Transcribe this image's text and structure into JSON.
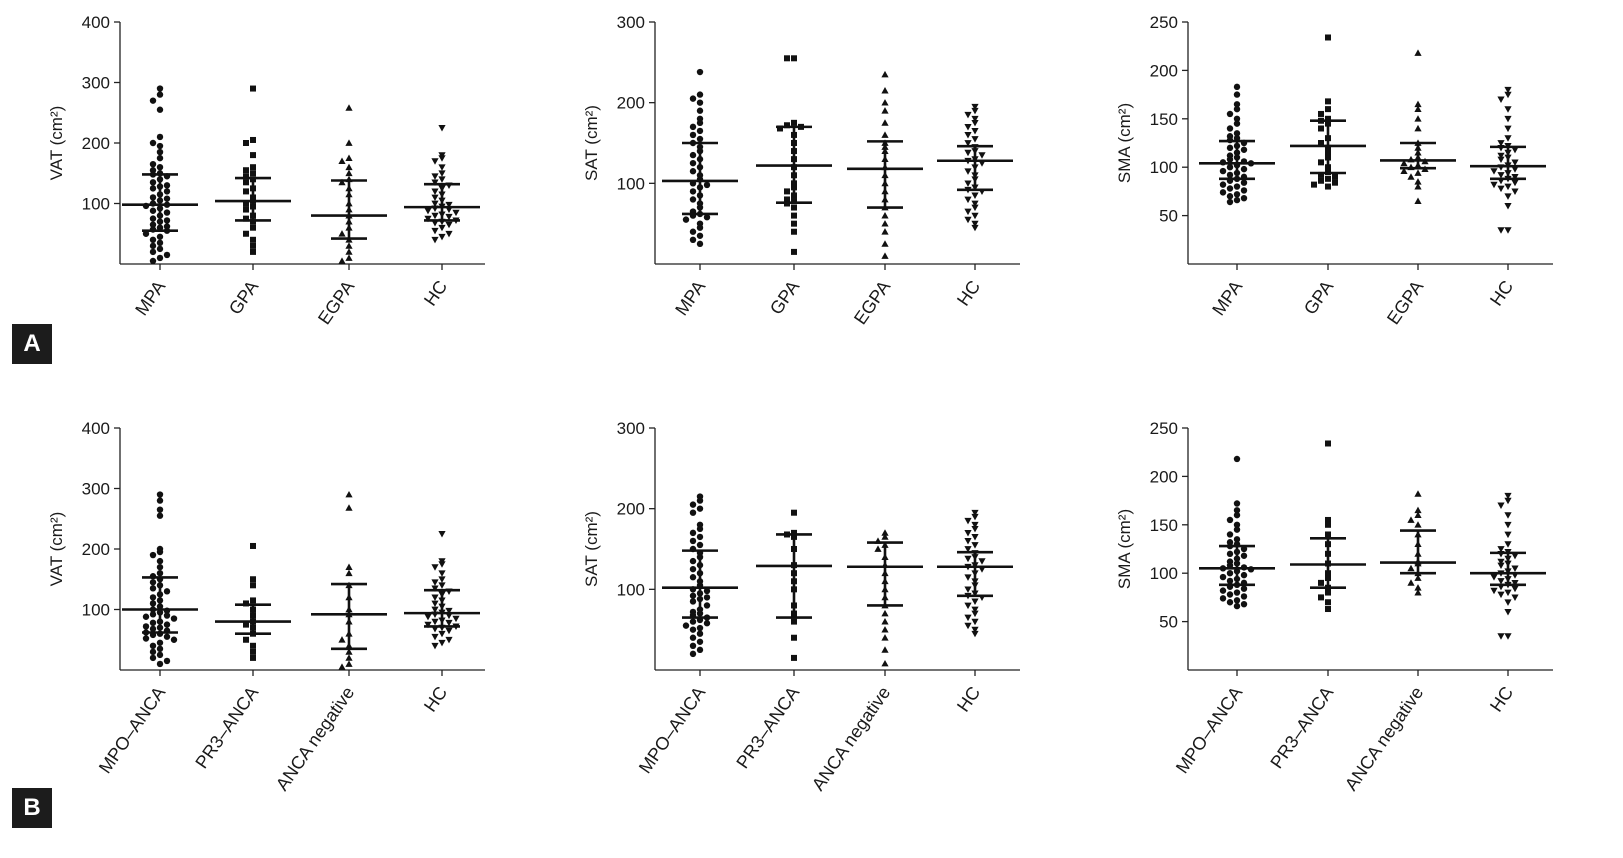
{
  "panel_labels": [
    "A",
    "B"
  ],
  "chart_data": [
    {
      "type": "scatter",
      "panel": "A",
      "ylabel": "VAT (cm²)",
      "yticks": [
        100,
        200,
        300,
        400
      ],
      "ylim": [
        0,
        400
      ],
      "categories": [
        "MPA",
        "GPA",
        "EGPA",
        "HC"
      ],
      "markers": [
        "circle",
        "square",
        "triangle",
        "triangle-down"
      ],
      "summary": [
        {
          "median": 98,
          "q1": 55,
          "q3": 148
        },
        {
          "median": 104,
          "q1": 72,
          "q3": 142
        },
        {
          "median": 80,
          "q1": 42,
          "q3": 138
        },
        {
          "median": 94,
          "q1": 72,
          "q3": 132
        }
      ],
      "points": [
        [
          290,
          280,
          270,
          255,
          210,
          200,
          195,
          185,
          175,
          165,
          160,
          155,
          150,
          148,
          145,
          140,
          135,
          130,
          128,
          125,
          120,
          115,
          110,
          108,
          105,
          100,
          98,
          96,
          92,
          88,
          85,
          80,
          75,
          72,
          70,
          65,
          62,
          60,
          57,
          55,
          50,
          45,
          40,
          35,
          30,
          25,
          20,
          15,
          10,
          5
        ],
        [
          290,
          205,
          200,
          180,
          160,
          155,
          150,
          145,
          140,
          135,
          125,
          120,
          110,
          105,
          100,
          95,
          90,
          80,
          75,
          70,
          60,
          50,
          40,
          30,
          20
        ],
        [
          258,
          200,
          175,
          170,
          160,
          150,
          140,
          135,
          125,
          115,
          100,
          90,
          80,
          70,
          60,
          50,
          40,
          30,
          20,
          10,
          5
        ],
        [
          225,
          180,
          175,
          170,
          160,
          150,
          145,
          140,
          135,
          130,
          125,
          120,
          115,
          110,
          105,
          100,
          98,
          95,
          92,
          90,
          88,
          85,
          82,
          80,
          78,
          75,
          72,
          70,
          68,
          65,
          60,
          55,
          50,
          45,
          40
        ]
      ]
    },
    {
      "type": "scatter",
      "panel": "A",
      "ylabel": "SAT (cm²)",
      "yticks": [
        100,
        200,
        300
      ],
      "ylim": [
        0,
        300
      ],
      "categories": [
        "MPA",
        "GPA",
        "EGPA",
        "HC"
      ],
      "markers": [
        "circle",
        "square",
        "triangle",
        "triangle-down"
      ],
      "summary": [
        {
          "median": 103,
          "q1": 62,
          "q3": 150
        },
        {
          "median": 122,
          "q1": 76,
          "q3": 170
        },
        {
          "median": 118,
          "q1": 70,
          "q3": 152
        },
        {
          "median": 128,
          "q1": 92,
          "q3": 146
        }
      ],
      "points": [
        [
          238,
          210,
          205,
          200,
          190,
          180,
          175,
          170,
          165,
          160,
          155,
          150,
          145,
          140,
          135,
          130,
          125,
          120,
          115,
          110,
          105,
          100,
          98,
          95,
          90,
          85,
          80,
          75,
          70,
          65,
          62,
          60,
          58,
          55,
          50,
          45,
          40,
          35,
          30,
          25
        ],
        [
          255,
          255,
          175,
          172,
          170,
          168,
          160,
          150,
          140,
          130,
          120,
          110,
          100,
          95,
          90,
          85,
          80,
          78,
          75,
          70,
          60,
          50,
          40,
          15
        ],
        [
          235,
          215,
          200,
          190,
          175,
          160,
          150,
          145,
          140,
          130,
          120,
          110,
          100,
          90,
          80,
          70,
          60,
          50,
          40,
          25,
          10
        ],
        [
          195,
          190,
          185,
          180,
          175,
          170,
          165,
          160,
          155,
          150,
          145,
          140,
          138,
          135,
          130,
          128,
          125,
          120,
          115,
          110,
          105,
          100,
          95,
          92,
          90,
          85,
          80,
          75,
          70,
          65,
          60,
          55,
          50,
          45
        ]
      ]
    },
    {
      "type": "scatter",
      "panel": "A",
      "ylabel": "SMA (cm²)",
      "yticks": [
        50,
        100,
        150,
        200,
        250
      ],
      "ylim": [
        0,
        250
      ],
      "categories": [
        "MPA",
        "GPA",
        "EGPA",
        "HC"
      ],
      "markers": [
        "circle",
        "square",
        "triangle",
        "triangle-down"
      ],
      "summary": [
        {
          "median": 104,
          "q1": 88,
          "q3": 127
        },
        {
          "median": 122,
          "q1": 94,
          "q3": 148
        },
        {
          "median": 107,
          "q1": 99,
          "q3": 125
        },
        {
          "median": 101,
          "q1": 88,
          "q3": 121
        }
      ],
      "points": [
        [
          183,
          175,
          165,
          160,
          155,
          150,
          145,
          140,
          135,
          132,
          130,
          128,
          125,
          122,
          120,
          118,
          115,
          112,
          110,
          108,
          106,
          105,
          104,
          102,
          100,
          98,
          96,
          94,
          92,
          90,
          88,
          86,
          84,
          82,
          80,
          78,
          76,
          74,
          72,
          70,
          68,
          66,
          64
        ],
        [
          234,
          168,
          160,
          155,
          150,
          148,
          145,
          140,
          130,
          125,
          120,
          115,
          110,
          105,
          100,
          95,
          92,
          90,
          88,
          86,
          84,
          82,
          80
        ],
        [
          218,
          165,
          160,
          150,
          140,
          125,
          120,
          115,
          110,
          108,
          106,
          104,
          102,
          100,
          98,
          96,
          94,
          90,
          85,
          80,
          65
        ],
        [
          180,
          175,
          170,
          160,
          150,
          140,
          130,
          125,
          122,
          120,
          118,
          115,
          112,
          110,
          108,
          105,
          102,
          100,
          98,
          96,
          94,
          92,
          90,
          88,
          86,
          84,
          82,
          80,
          78,
          75,
          70,
          60,
          35,
          35
        ]
      ]
    },
    {
      "type": "scatter",
      "panel": "B",
      "ylabel": "VAT (cm²)",
      "yticks": [
        100,
        200,
        300,
        400
      ],
      "ylim": [
        0,
        400
      ],
      "categories": [
        "MPO–ANCA",
        "PR3–ANCA",
        "ANCA negative",
        "HC"
      ],
      "markers": [
        "circle",
        "square",
        "triangle",
        "triangle-down"
      ],
      "summary": [
        {
          "median": 100,
          "q1": 62,
          "q3": 153
        },
        {
          "median": 80,
          "q1": 60,
          "q3": 108
        },
        {
          "median": 92,
          "q1": 35,
          "q3": 142
        },
        {
          "median": 94,
          "q1": 72,
          "q3": 132
        }
      ],
      "points": [
        [
          290,
          280,
          265,
          255,
          200,
          195,
          190,
          180,
          170,
          160,
          155,
          150,
          145,
          140,
          135,
          130,
          125,
          120,
          115,
          110,
          105,
          100,
          98,
          95,
          92,
          90,
          88,
          85,
          80,
          78,
          75,
          72,
          70,
          68,
          65,
          62,
          60,
          58,
          55,
          52,
          50,
          45,
          40,
          35,
          30,
          25,
          20,
          15,
          10
        ],
        [
          205,
          150,
          140,
          115,
          110,
          100,
          90,
          80,
          75,
          70,
          60,
          50,
          40,
          30,
          20
        ],
        [
          290,
          268,
          170,
          160,
          140,
          120,
          100,
          92,
          80,
          60,
          50,
          40,
          30,
          20,
          10,
          5
        ],
        [
          225,
          180,
          175,
          170,
          160,
          150,
          145,
          140,
          135,
          130,
          125,
          120,
          115,
          110,
          105,
          100,
          98,
          95,
          92,
          90,
          88,
          85,
          82,
          80,
          78,
          75,
          72,
          70,
          68,
          65,
          60,
          55,
          50,
          45,
          40
        ]
      ]
    },
    {
      "type": "scatter",
      "panel": "B",
      "ylabel": "SAT (cm²)",
      "yticks": [
        100,
        200,
        300
      ],
      "ylim": [
        0,
        300
      ],
      "categories": [
        "MPO–ANCA",
        "PR3–ANCA",
        "ANCA negative",
        "HC"
      ],
      "markers": [
        "circle",
        "square",
        "triangle",
        "triangle-down"
      ],
      "summary": [
        {
          "median": 102,
          "q1": 65,
          "q3": 148
        },
        {
          "median": 129,
          "q1": 65,
          "q3": 168
        },
        {
          "median": 128,
          "q1": 80,
          "q3": 158
        },
        {
          "median": 128,
          "q1": 92,
          "q3": 146
        }
      ],
      "points": [
        [
          215,
          210,
          205,
          200,
          195,
          180,
          175,
          170,
          165,
          160,
          155,
          150,
          145,
          140,
          135,
          130,
          125,
          120,
          115,
          110,
          105,
          100,
          98,
          95,
          92,
          90,
          88,
          85,
          80,
          75,
          72,
          70,
          68,
          65,
          62,
          60,
          58,
          55,
          52,
          50,
          45,
          40,
          35,
          30,
          25,
          20
        ],
        [
          195,
          170,
          168,
          165,
          150,
          130,
          120,
          110,
          100,
          80,
          70,
          60,
          40,
          15
        ],
        [
          170,
          165,
          160,
          155,
          150,
          140,
          130,
          120,
          110,
          100,
          90,
          80,
          70,
          60,
          50,
          40,
          25,
          8
        ],
        [
          195,
          190,
          185,
          180,
          175,
          170,
          165,
          160,
          155,
          150,
          145,
          140,
          138,
          135,
          130,
          128,
          125,
          120,
          115,
          110,
          105,
          100,
          95,
          92,
          90,
          85,
          80,
          75,
          70,
          65,
          60,
          55,
          50,
          45
        ]
      ]
    },
    {
      "type": "scatter",
      "panel": "B",
      "ylabel": "SMA (cm²)",
      "yticks": [
        50,
        100,
        150,
        200,
        250
      ],
      "ylim": [
        0,
        250
      ],
      "categories": [
        "MPO–ANCA",
        "PR3–ANCA",
        "ANCA negative",
        "HC"
      ],
      "markers": [
        "circle",
        "square",
        "triangle",
        "triangle-down"
      ],
      "summary": [
        {
          "median": 105,
          "q1": 88,
          "q3": 128
        },
        {
          "median": 109,
          "q1": 85,
          "q3": 136
        },
        {
          "median": 111,
          "q1": 100,
          "q3": 144
        },
        {
          "median": 100,
          "q1": 88,
          "q3": 121
        }
      ],
      "points": [
        [
          218,
          172,
          165,
          160,
          155,
          150,
          145,
          140,
          135,
          132,
          130,
          128,
          125,
          122,
          120,
          118,
          115,
          112,
          110,
          108,
          106,
          105,
          104,
          102,
          100,
          98,
          96,
          94,
          92,
          90,
          88,
          86,
          84,
          82,
          80,
          78,
          76,
          74,
          72,
          70,
          68,
          66
        ],
        [
          234,
          155,
          150,
          140,
          130,
          120,
          110,
          100,
          95,
          90,
          85,
          80,
          75,
          70,
          63
        ],
        [
          182,
          165,
          160,
          155,
          150,
          140,
          130,
          120,
          112,
          110,
          105,
          100,
          95,
          90,
          85,
          80
        ],
        [
          180,
          175,
          170,
          160,
          150,
          140,
          130,
          125,
          122,
          120,
          118,
          115,
          112,
          110,
          108,
          105,
          102,
          100,
          98,
          96,
          94,
          92,
          90,
          88,
          86,
          84,
          82,
          80,
          78,
          75,
          70,
          60,
          35,
          35
        ]
      ]
    }
  ]
}
